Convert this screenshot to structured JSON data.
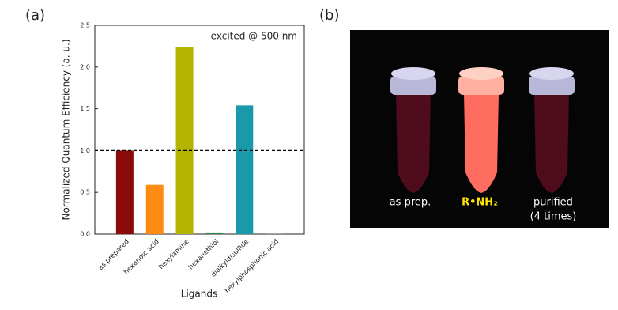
{
  "panels": [
    "(a)",
    "(b)"
  ],
  "chart_data": {
    "type": "bar",
    "y_label": "Normalized Quantum Efficiency (a. u.)",
    "x_label": "Ligands",
    "annotation": "excited @ 500 nm",
    "categories": [
      "as prepared",
      "hexanoic acid",
      "hexylamine",
      "hexanethiol",
      "dialkyldisulfide",
      "hexylphosphonic acid"
    ],
    "values": [
      1.0,
      0.59,
      2.24,
      0.02,
      1.54,
      0.005
    ],
    "colors": [
      "#8b0a0a",
      "#ff8c12",
      "#b4b400",
      "#2e8b4f",
      "#1a9aa8",
      "#555555"
    ],
    "reference_line": 1.0,
    "ylim": [
      0,
      2.5
    ],
    "yticks": [
      {
        "value": 0,
        "label": "0.0"
      },
      0.5,
      {
        "value": 1,
        "label": "1.0"
      },
      1.5,
      {
        "value": 2,
        "label": "2.0"
      },
      2.5
    ]
  },
  "photo": {
    "labels": [
      "as prep.",
      "R•NH₂",
      "purified",
      "(4 times)"
    ]
  }
}
